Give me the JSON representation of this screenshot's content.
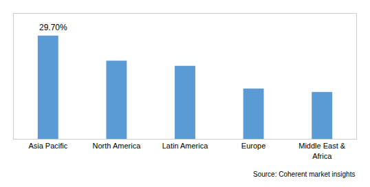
{
  "chart_data": {
    "type": "bar",
    "categories": [
      "Asia Pacific",
      "North America",
      "Latin America",
      "Europe",
      "Middle East &\nAfrica"
    ],
    "values": [
      29.7,
      22.5,
      21.0,
      14.5,
      13.5
    ],
    "color": "#5B9BD5",
    "ylim": [
      0,
      36
    ],
    "tick_labels": "x",
    "grid": false,
    "annotations": [
      {
        "text": "29.70%",
        "x": "Asia Pacific",
        "y": 29.7
      }
    ],
    "source": "Source: Coherent market insights"
  }
}
